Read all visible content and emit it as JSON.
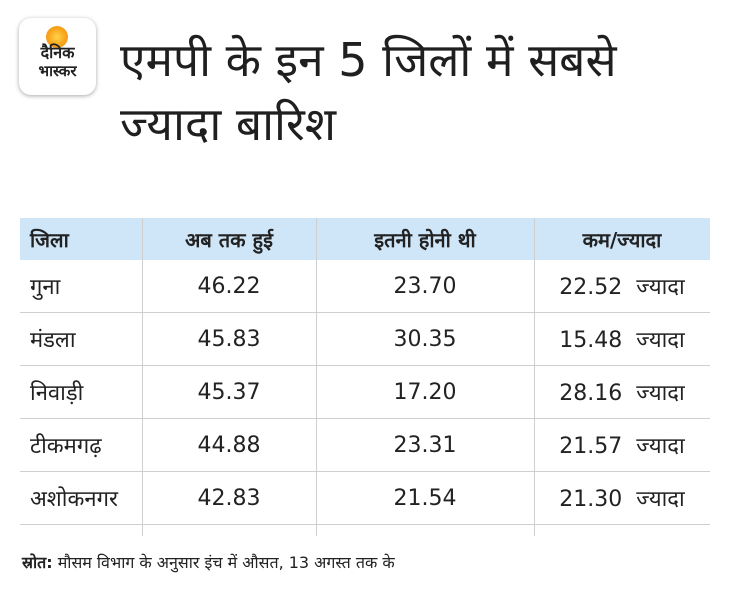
{
  "logo": {
    "line1": "दैनिक",
    "line2": "भास्कर"
  },
  "title": "एमपी के इन 5 जिलों में सबसे ज्यादा बारिश",
  "chart_data": {
    "type": "table",
    "columns": [
      "जिला",
      "अब तक हुई",
      "इतनी होनी थी",
      "कम/ज्यादा"
    ],
    "rows": [
      {
        "district": "गुना",
        "actual": "46.22",
        "expected": "23.70",
        "diff": "22.52",
        "diff_label": "ज्यादा"
      },
      {
        "district": "मंडला",
        "actual": "45.83",
        "expected": "30.35",
        "diff": "15.48",
        "diff_label": "ज्यादा"
      },
      {
        "district": "निवाड़ी",
        "actual": "45.37",
        "expected": "17.20",
        "diff": "28.16",
        "diff_label": "ज्यादा"
      },
      {
        "district": "टीकमगढ़",
        "actual": "44.88",
        "expected": "23.31",
        "diff": "21.57",
        "diff_label": "ज्यादा"
      },
      {
        "district": "अशोकनगर",
        "actual": "42.83",
        "expected": "21.54",
        "diff": "21.30",
        "diff_label": "ज्यादा"
      }
    ]
  },
  "footer": {
    "source_label": "स्रोत:",
    "source_text": " मौसम विभाग के अनुसार इंच में औसत, 13 अगस्त तक के"
  }
}
